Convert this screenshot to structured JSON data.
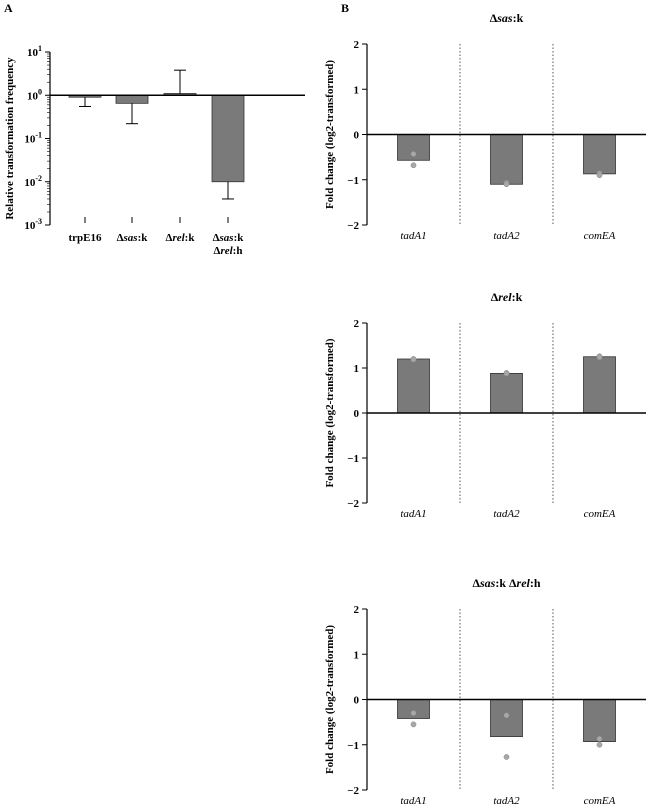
{
  "panels": {
    "a_label": "A",
    "b_label": "B"
  },
  "colors": {
    "bar": "#7a7a7a",
    "point": "#a8a8a8",
    "axis": "#000000",
    "divider": "#555555"
  },
  "chart_data": [
    {
      "id": "A",
      "type": "bar",
      "yscale": "log",
      "ylabel": "Relative transformation frequency",
      "ylim": [
        0.001,
        10
      ],
      "yticks": [
        {
          "value": 10,
          "exp": "1"
        },
        {
          "value": 1,
          "exp": "0"
        },
        {
          "value": 0.1,
          "exp": "-1"
        },
        {
          "value": 0.01,
          "exp": "-2"
        },
        {
          "value": 0.001,
          "exp": "-3"
        }
      ],
      "categories": [
        {
          "lines": [
            [
              {
                "t": "trpE16",
                "i": false
              }
            ]
          ]
        },
        {
          "lines": [
            [
              {
                "t": "Δ",
                "i": false
              },
              {
                "t": "sas",
                "i": true
              },
              {
                "t": ":k",
                "i": false
              }
            ]
          ]
        },
        {
          "lines": [
            [
              {
                "t": "Δ",
                "i": false
              },
              {
                "t": "rel",
                "i": true
              },
              {
                "t": ":k",
                "i": false
              }
            ]
          ]
        },
        {
          "lines": [
            [
              {
                "t": "Δ",
                "i": false
              },
              {
                "t": "sas",
                "i": true
              },
              {
                "t": ":k",
                "i": false
              }
            ],
            [
              {
                "t": "Δ",
                "i": false
              },
              {
                "t": "rel",
                "i": true
              },
              {
                "t": ":h",
                "i": false
              }
            ]
          ]
        }
      ],
      "values": [
        0.9,
        0.65,
        1.1,
        0.01
      ],
      "errors": [
        {
          "dir": "down",
          "to": 0.55
        },
        {
          "dir": "down",
          "to": 0.22
        },
        {
          "dir": "up",
          "to": 3.8
        },
        {
          "dir": "down",
          "to": 0.004
        }
      ]
    },
    {
      "id": "B1",
      "type": "bar",
      "title_parts": [
        {
          "t": "Δ",
          "i": false
        },
        {
          "t": "sas",
          "i": true
        },
        {
          "t": ":k",
          "i": false
        }
      ],
      "ylabel": "Fold change (log2-transformed)",
      "ylim": [
        -2,
        2
      ],
      "yticks": [
        2,
        1,
        0,
        -1,
        -2
      ],
      "categories": [
        "tadA1",
        "tadA2",
        "comEA"
      ],
      "values": [
        -0.57,
        -1.1,
        -0.87
      ],
      "points": [
        [
          -0.43,
          -0.68
        ],
        [
          -1.07,
          -1.1
        ],
        [
          -0.86,
          -0.9
        ]
      ]
    },
    {
      "id": "B2",
      "type": "bar",
      "title_parts": [
        {
          "t": "Δ",
          "i": false
        },
        {
          "t": "rel",
          "i": true
        },
        {
          "t": ":k",
          "i": false
        }
      ],
      "ylabel": "Fold change (log2-transformed)",
      "ylim": [
        -2,
        2
      ],
      "yticks": [
        2,
        1,
        0,
        -1,
        -2
      ],
      "categories": [
        "tadA1",
        "tadA2",
        "comEA"
      ],
      "values": [
        1.2,
        0.88,
        1.25
      ],
      "points": [
        [
          1.2,
          1.19
        ],
        [
          0.89,
          0.88
        ],
        [
          1.26,
          1.24
        ]
      ]
    },
    {
      "id": "B3",
      "type": "bar",
      "title_parts": [
        {
          "t": "Δ",
          "i": false
        },
        {
          "t": "sas",
          "i": true
        },
        {
          "t": ":k Δ",
          "i": false
        },
        {
          "t": "rel",
          "i": true
        },
        {
          "t": ":h",
          "i": false
        }
      ],
      "ylabel": "Fold change (log2-transformed)",
      "ylim": [
        -2,
        2
      ],
      "yticks": [
        2,
        1,
        0,
        -1,
        -2
      ],
      "categories": [
        "tadA1",
        "tadA2",
        "comEA"
      ],
      "values": [
        -0.42,
        -0.82,
        -0.93
      ],
      "points": [
        [
          -0.3,
          -0.55
        ],
        [
          -0.35,
          -1.27
        ],
        [
          -0.87,
          -1.0
        ]
      ]
    }
  ]
}
